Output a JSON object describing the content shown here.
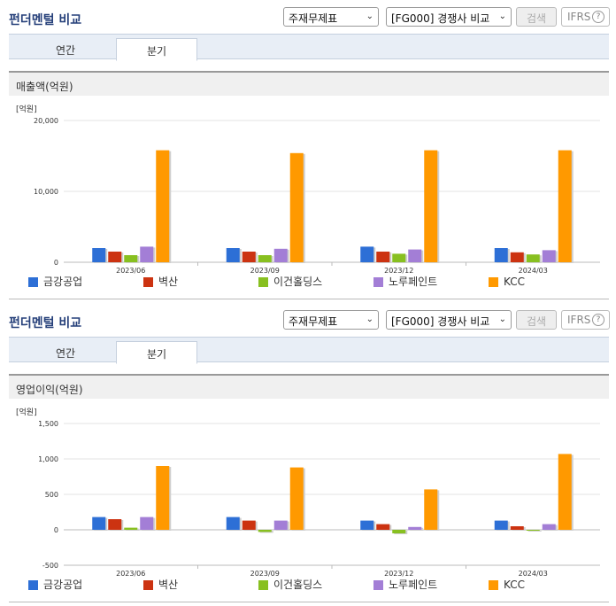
{
  "panels": [
    {
      "title": "펀더멘털 비교",
      "select1": "주재무제표",
      "select2": "[FG000] 경쟁사 비교",
      "search_label": "검색",
      "ifrs_label": "IFRS",
      "help_icon": "?",
      "tabs": [
        "연간",
        "분기"
      ],
      "section_title": "매출액(억원)"
    },
    {
      "title": "펀더멘털 비교",
      "select1": "주재무제표",
      "select2": "[FG000] 경쟁사 비교",
      "search_label": "검색",
      "ifrs_label": "IFRS",
      "help_icon": "?",
      "tabs": [
        "연간",
        "분기"
      ],
      "section_title": "영업이익(억원)"
    }
  ],
  "chart_data": [
    {
      "type": "bar",
      "unit": "[억원]",
      "categories": [
        "2023/06",
        "2023/09",
        "2023/12",
        "2024/03"
      ],
      "ylim": [
        0,
        20000
      ],
      "yticks": [
        0,
        10000,
        20000
      ],
      "ytick_labels": [
        "0",
        "10,000",
        "20,000"
      ],
      "series": [
        {
          "name": "금강공업",
          "color": "#2d6fd6",
          "values": [
            2000,
            2000,
            2200,
            2000
          ]
        },
        {
          "name": "벽산",
          "color": "#cc3311",
          "values": [
            1500,
            1500,
            1500,
            1400
          ]
        },
        {
          "name": "이건홀딩스",
          "color": "#88c020",
          "values": [
            1000,
            1000,
            1200,
            1100
          ]
        },
        {
          "name": "노루페인트",
          "color": "#a37ed6",
          "values": [
            2200,
            1900,
            1800,
            1700
          ]
        },
        {
          "name": "KCC",
          "color": "#ff9900",
          "values": [
            15800,
            15400,
            15800,
            15800
          ]
        }
      ]
    },
    {
      "type": "bar",
      "unit": "[억원]",
      "categories": [
        "2023/06",
        "2023/09",
        "2023/12",
        "2024/03"
      ],
      "ylim": [
        -500,
        1500
      ],
      "yticks": [
        -500,
        0,
        500,
        1000,
        1500
      ],
      "ytick_labels": [
        "-500",
        "0",
        "500",
        "1,000",
        "1,500"
      ],
      "series": [
        {
          "name": "금강공업",
          "color": "#2d6fd6",
          "values": [
            180,
            180,
            130,
            130
          ]
        },
        {
          "name": "벽산",
          "color": "#cc3311",
          "values": [
            150,
            130,
            80,
            50
          ]
        },
        {
          "name": "이건홀딩스",
          "color": "#88c020",
          "values": [
            30,
            -30,
            -50,
            0
          ]
        },
        {
          "name": "노루페인트",
          "color": "#a37ed6",
          "values": [
            180,
            130,
            40,
            80
          ]
        },
        {
          "name": "KCC",
          "color": "#ff9900",
          "values": [
            900,
            880,
            570,
            1070
          ]
        }
      ]
    }
  ]
}
